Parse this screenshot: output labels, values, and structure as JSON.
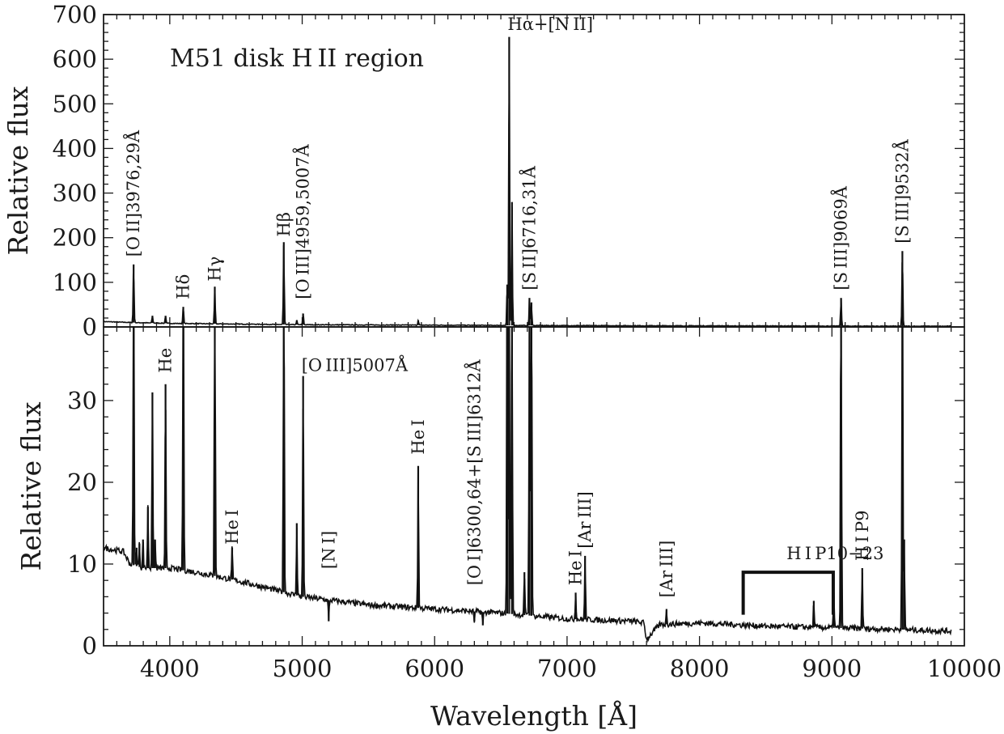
{
  "chart_data": [
    {
      "type": "line",
      "panel": "top",
      "title": "M51 disk H II region",
      "xlabel": "",
      "ylabel": "Relative flux",
      "xlim": [
        3500,
        10000
      ],
      "ylim": [
        0,
        700
      ],
      "x_ticks": [
        4000,
        5000,
        6000,
        7000,
        8000,
        9000,
        10000
      ],
      "y_ticks": [
        0,
        100,
        200,
        300,
        400,
        500,
        600,
        700
      ],
      "y_tick_labels": [
        "0",
        "100",
        "200",
        "300",
        "400",
        "500",
        "600",
        "700"
      ],
      "grid": false,
      "continuum": {
        "x": [
          3500,
          3700,
          4000,
          5000,
          6000,
          7000,
          8000,
          9000,
          10000
        ],
        "y": [
          12,
          10,
          8,
          5,
          4,
          3,
          2.5,
          2,
          1.5
        ]
      },
      "lines": [
        {
          "x": 3727,
          "y": 140
        },
        {
          "x": 3869,
          "y": 25
        },
        {
          "x": 3968,
          "y": 25
        },
        {
          "x": 4102,
          "y": 45
        },
        {
          "x": 4340,
          "y": 90
        },
        {
          "x": 4861,
          "y": 190
        },
        {
          "x": 4959,
          "y": 15
        },
        {
          "x": 5007,
          "y": 30
        },
        {
          "x": 5876,
          "y": 15
        },
        {
          "x": 6548,
          "y": 95
        },
        {
          "x": 6563,
          "y": 650
        },
        {
          "x": 6584,
          "y": 280
        },
        {
          "x": 6716,
          "y": 65
        },
        {
          "x": 6731,
          "y": 55
        },
        {
          "x": 9069,
          "y": 65
        },
        {
          "x": 9532,
          "y": 170
        }
      ],
      "annotations": [
        {
          "text": "[O II]3976,29Å",
          "x": 3727,
          "y": 150,
          "rotated": true
        },
        {
          "text": "Hδ",
          "x": 4102,
          "y": 55,
          "rotated": true
        },
        {
          "text": "Hγ",
          "x": 4340,
          "y": 95,
          "rotated": true
        },
        {
          "text": "Hβ",
          "x": 4861,
          "y": 195,
          "rotated": true
        },
        {
          "text": "[O III]4959,5007Å",
          "x": 5007,
          "y": 55,
          "rotated": true
        },
        {
          "text": "Hα+[N II]",
          "x": 6563,
          "y": 655,
          "rotated": false
        },
        {
          "text": "[S II]6716,31Å",
          "x": 6716,
          "y": 75,
          "rotated": true
        },
        {
          "text": "[S III]9069Å",
          "x": 9069,
          "y": 75,
          "rotated": true
        },
        {
          "text": "[S III]9532Å",
          "x": 9532,
          "y": 180,
          "rotated": true
        }
      ]
    },
    {
      "type": "line",
      "panel": "bottom",
      "title": "",
      "xlabel": "Wavelength [Å]",
      "ylabel": "Relative flux",
      "xlim": [
        3500,
        10000
      ],
      "ylim": [
        0,
        39
      ],
      "x_ticks": [
        4000,
        5000,
        6000,
        7000,
        8000,
        9000,
        10000
      ],
      "x_tick_labels": [
        "4000",
        "5000",
        "6000",
        "7000",
        "8000",
        "9000",
        "10000"
      ],
      "y_ticks": [
        0,
        10,
        20,
        30
      ],
      "y_tick_labels": [
        "0",
        "10",
        "20",
        "30"
      ],
      "grid": false,
      "continuum": {
        "x": [
          3500,
          3650,
          3700,
          3800,
          4000,
          4200,
          4500,
          4700,
          5000,
          5500,
          6000,
          6500,
          7000,
          7500,
          7580,
          7600,
          7700,
          8000,
          8500,
          9000,
          9500,
          9900
        ],
        "y": [
          12,
          11.5,
          10,
          9.5,
          9.5,
          9,
          8,
          7.2,
          6,
          5,
          4.5,
          4,
          3.3,
          3,
          2.8,
          0.8,
          2.6,
          2.8,
          2.4,
          2.2,
          2.0,
          1.8
        ]
      },
      "lines": [
        {
          "x": 3727,
          "y": 60
        },
        {
          "x": 3750,
          "y": 12
        },
        {
          "x": 3771,
          "y": 12.5
        },
        {
          "x": 3798,
          "y": 13
        },
        {
          "x": 3835,
          "y": 17
        },
        {
          "x": 3869,
          "y": 31
        },
        {
          "x": 3889,
          "y": 13
        },
        {
          "x": 3968,
          "y": 32
        },
        {
          "x": 4102,
          "y": 60
        },
        {
          "x": 4340,
          "y": 60
        },
        {
          "x": 4471,
          "y": 12
        },
        {
          "x": 4861,
          "y": 60
        },
        {
          "x": 4959,
          "y": 15
        },
        {
          "x": 5007,
          "y": 33
        },
        {
          "x": 5200,
          "y": 3
        },
        {
          "x": 5876,
          "y": 22
        },
        {
          "x": 6300,
          "y": 3
        },
        {
          "x": 6364,
          "y": 2.5
        },
        {
          "x": 6548,
          "y": 60
        },
        {
          "x": 6563,
          "y": 60
        },
        {
          "x": 6584,
          "y": 60
        },
        {
          "x": 6678,
          "y": 9
        },
        {
          "x": 6716,
          "y": 60
        },
        {
          "x": 6731,
          "y": 60
        },
        {
          "x": 7065,
          "y": 6.5
        },
        {
          "x": 7136,
          "y": 11
        },
        {
          "x": 7751,
          "y": 4.5
        },
        {
          "x": 8863,
          "y": 5.5
        },
        {
          "x": 9014,
          "y": 6.5
        },
        {
          "x": 9069,
          "y": 60
        },
        {
          "x": 9229,
          "y": 9.5
        },
        {
          "x": 9532,
          "y": 60
        },
        {
          "x": 9546,
          "y": 13
        }
      ],
      "annotations": [
        {
          "text": "He",
          "x": 3968,
          "y": 33,
          "rotated": true
        },
        {
          "text": "He I",
          "x": 4471,
          "y": 12,
          "rotated": true
        },
        {
          "text": "[O III]5007Å",
          "x": 5007,
          "y": 33,
          "rotated": false
        },
        {
          "text": "[N I]",
          "x": 5200,
          "y": 9,
          "rotated": true
        },
        {
          "text": "He I",
          "x": 5876,
          "y": 23,
          "rotated": true
        },
        {
          "text": "[O I]6300,64+[S III]6312Å",
          "x": 6300,
          "y": 7,
          "rotated": true
        },
        {
          "text": "He I",
          "x": 7065,
          "y": 7,
          "rotated": true
        },
        {
          "text": "[Ar III]",
          "x": 7136,
          "y": 11.5,
          "rotated": true
        },
        {
          "text": "[Ar III]",
          "x": 7751,
          "y": 5.5,
          "rotated": true
        },
        {
          "text": "H I P10−23",
          "x": 8670,
          "y": 10,
          "rotated": false
        },
        {
          "text": "H I P9",
          "x": 9229,
          "y": 10,
          "rotated": true
        }
      ],
      "bracket": {
        "x_start": 8330,
        "x_end": 9010,
        "y_bar": 9,
        "y_foot": 3.8
      }
    }
  ]
}
